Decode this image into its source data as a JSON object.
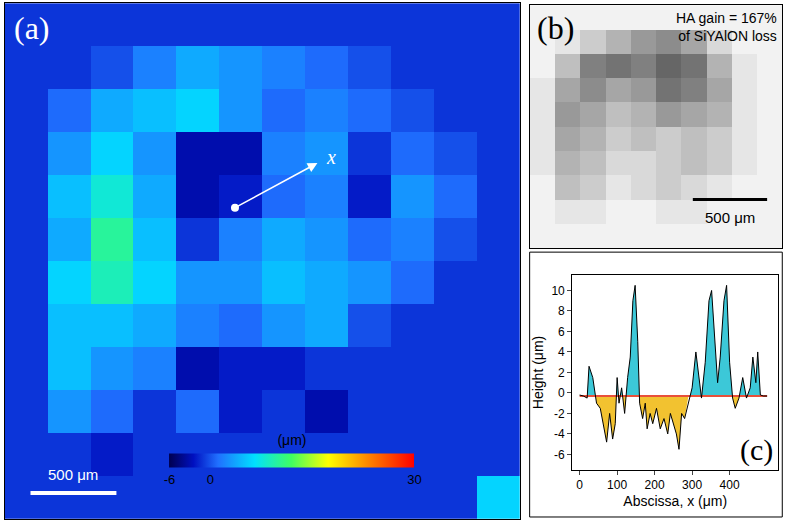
{
  "chart_data": [
    {
      "type": "heatmap",
      "label": "(a)",
      "tick_labels": false,
      "xlim": [
        0,
        3000
      ],
      "ylim": [
        3000,
        0
      ],
      "x": [
        125,
        375,
        625,
        875,
        1125,
        1375,
        1625,
        1875,
        2125,
        2375,
        2625,
        2875
      ],
      "y": [
        125,
        375,
        625,
        875,
        1125,
        1375,
        1625,
        1875,
        2125,
        2375,
        2625,
        2875
      ],
      "cells": [
        [
          -1,
          -1,
          -1,
          -1,
          -1,
          -1,
          -1,
          -1,
          -1,
          -1,
          -1,
          -1
        ],
        [
          -1,
          -1,
          0,
          2,
          4,
          3,
          2,
          1,
          0,
          -1,
          -1,
          -1
        ],
        [
          -1,
          1,
          4,
          5,
          6,
          3,
          1,
          2,
          1,
          0,
          -1,
          -1
        ],
        [
          -1,
          3,
          6,
          3,
          -3,
          -3,
          2,
          3,
          -1,
          1,
          0,
          -1
        ],
        [
          -1,
          5,
          8,
          4,
          -3,
          -2,
          1,
          2,
          -2,
          3,
          1,
          -1
        ],
        [
          -1,
          4,
          10,
          5,
          -1,
          2,
          4,
          3,
          1,
          2,
          0,
          -1
        ],
        [
          -1,
          6,
          9,
          6,
          3,
          3,
          5,
          4,
          3,
          1,
          -1,
          -1
        ],
        [
          -1,
          5,
          5,
          4,
          2,
          1,
          3,
          4,
          0,
          -1,
          -1,
          -1
        ],
        [
          -1,
          5,
          3,
          2,
          -3,
          -2,
          -2,
          -1,
          -1,
          -1,
          -1,
          -1
        ],
        [
          -1,
          3,
          1,
          -1,
          1,
          -2,
          -1,
          -3,
          -1,
          -1,
          -1,
          -1
        ],
        [
          -1,
          -1,
          -2,
          -1,
          -1,
          -1,
          -1,
          -1,
          -1,
          -1,
          -1,
          -1
        ],
        [
          -1,
          -1,
          -1,
          -1,
          -1,
          -1,
          -1,
          -1,
          -1,
          -1,
          -1,
          6
        ]
      ],
      "colorbar": {
        "title": "(μm)",
        "range": [
          -6,
          30
        ],
        "ticks": [
          -6,
          0,
          30
        ]
      },
      "scale_bar": {
        "length": 500,
        "label": "500 μm"
      },
      "profile_line": {
        "start": [
          1340,
          1190
        ],
        "end": [
          1820,
          930
        ],
        "label": "x"
      }
    },
    {
      "type": "heatmap",
      "label": "(b)",
      "tick_labels": false,
      "annotation": [
        "HA gain = 167%",
        "of SiYAlON loss"
      ],
      "xlim": [
        0,
        1700
      ],
      "ylim": [
        1640,
        0
      ],
      "zlim": [
        0,
        100
      ],
      "x": [
        85,
        255,
        425,
        595,
        765,
        935,
        1105,
        1275,
        1445,
        1615
      ],
      "y": [
        82,
        246,
        410,
        574,
        738,
        902,
        1066,
        1230,
        1394,
        1558
      ],
      "cells": [
        [
          5,
          5,
          5,
          5,
          5,
          5,
          5,
          5,
          5,
          5
        ],
        [
          5,
          10,
          20,
          30,
          40,
          45,
          35,
          15,
          5,
          5
        ],
        [
          5,
          25,
          50,
          55,
          50,
          60,
          55,
          30,
          10,
          5
        ],
        [
          10,
          35,
          45,
          35,
          40,
          55,
          50,
          35,
          10,
          5
        ],
        [
          10,
          40,
          35,
          25,
          30,
          40,
          35,
          30,
          10,
          5
        ],
        [
          10,
          35,
          30,
          20,
          25,
          20,
          25,
          20,
          10,
          5
        ],
        [
          10,
          30,
          25,
          15,
          15,
          20,
          25,
          20,
          10,
          5
        ],
        [
          5,
          25,
          20,
          10,
          15,
          20,
          15,
          10,
          5,
          5
        ],
        [
          5,
          10,
          10,
          5,
          5,
          10,
          10,
          5,
          5,
          5
        ],
        [
          5,
          5,
          5,
          5,
          5,
          5,
          5,
          5,
          5,
          5
        ]
      ],
      "scale_bar": {
        "length": 500,
        "label": "500 μm"
      }
    },
    {
      "type": "line",
      "label": "(c)",
      "grid": false,
      "color": "#000000",
      "xlabel": "Abscissa, x (μm)",
      "ylabel": "Height (μm)",
      "xlim": [
        -20,
        530
      ],
      "ylim": [
        -7.5,
        11.5
      ],
      "xticks": [
        0,
        100,
        200,
        300,
        400
      ],
      "yticks": [
        -6,
        -4,
        -2,
        0,
        2,
        4,
        6,
        8,
        10
      ],
      "baseline": -0.3,
      "x": [
        0,
        10,
        20,
        25,
        35,
        45,
        55,
        65,
        72,
        80,
        88,
        95,
        100,
        105,
        112,
        120,
        128,
        135,
        142,
        148,
        155,
        160,
        168,
        175,
        180,
        188,
        195,
        205,
        215,
        225,
        235,
        242,
        250,
        258,
        265,
        272,
        280,
        290,
        300,
        310,
        318,
        325,
        335,
        345,
        352,
        360,
        368,
        375,
        385,
        392,
        400,
        408,
        415,
        425,
        435,
        445,
        455,
        462,
        470,
        475,
        482,
        490,
        500
      ],
      "values": [
        -0.2,
        -0.3,
        -0.5,
        2.6,
        1.5,
        -1,
        -1.5,
        -3.5,
        -4.8,
        -2,
        -4.5,
        -3,
        1.5,
        -1,
        0.5,
        -2,
        1.5,
        3.5,
        9,
        10.5,
        5,
        -1,
        -2.5,
        -1,
        -3.5,
        -2,
        -3,
        -1.5,
        -3.5,
        -2.5,
        -4,
        -2,
        -3,
        -4,
        -5.5,
        -2,
        -2.5,
        -1,
        0.5,
        4,
        1.5,
        -0.5,
        3,
        9,
        10,
        5,
        1,
        3.5,
        9,
        10.5,
        3,
        -0.5,
        -1.5,
        -0.5,
        1.5,
        -0.5,
        0.5,
        3.5,
        1,
        4,
        -0.2,
        -0.3,
        -0.3
      ]
    }
  ]
}
